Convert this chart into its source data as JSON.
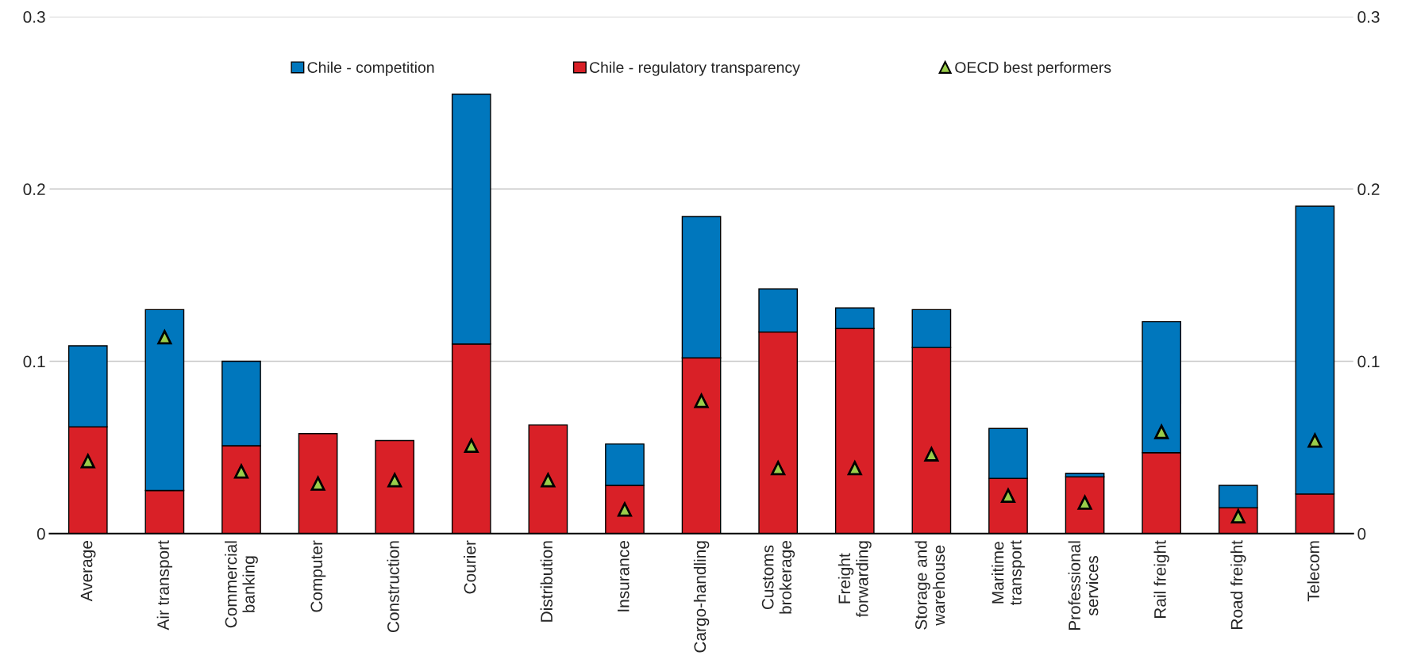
{
  "chart_data": {
    "type": "bar",
    "stacked": true,
    "categories": [
      "Average",
      "Air transport",
      "Commercial\nbanking",
      "Computer",
      "Construction",
      "Courier",
      "Distribution",
      "Insurance",
      "Cargo-handling",
      "Customs\nbrokerage",
      "Freight\nforwarding",
      "Storage and\nwarehouse",
      "Maritime\ntransport",
      "Professional\nservices",
      "Rail freight",
      "Road freight",
      "Telecom"
    ],
    "series": [
      {
        "name": "Chile - regulatory transparency",
        "color": "#d92027",
        "values": [
          0.062,
          0.025,
          0.051,
          0.058,
          0.054,
          0.11,
          0.063,
          0.028,
          0.102,
          0.117,
          0.119,
          0.108,
          0.032,
          0.033,
          0.047,
          0.015,
          0.023
        ]
      },
      {
        "name": "Chile - competition",
        "color": "#0077bd",
        "values": [
          0.047,
          0.105,
          0.049,
          null,
          null,
          0.145,
          null,
          0.024,
          0.082,
          0.025,
          0.012,
          0.022,
          0.029,
          0.002,
          0.076,
          0.013,
          0.167
        ]
      },
      {
        "name": "OECD best performers",
        "type": "scatter",
        "marker": "triangle",
        "color": "#9acd4a",
        "values": [
          0.042,
          0.114,
          0.036,
          0.029,
          0.031,
          0.051,
          0.031,
          0.014,
          0.077,
          0.038,
          0.038,
          0.046,
          0.022,
          0.018,
          0.059,
          0.01,
          0.054
        ]
      }
    ],
    "ylim": [
      0,
      0.3
    ],
    "yticks": [
      0,
      0.1,
      0.2,
      0.3
    ],
    "y2lim": [
      0,
      0.3
    ],
    "y2ticks": [
      0,
      0.1,
      0.2,
      0.3
    ],
    "grid": "y",
    "legend": "top"
  }
}
